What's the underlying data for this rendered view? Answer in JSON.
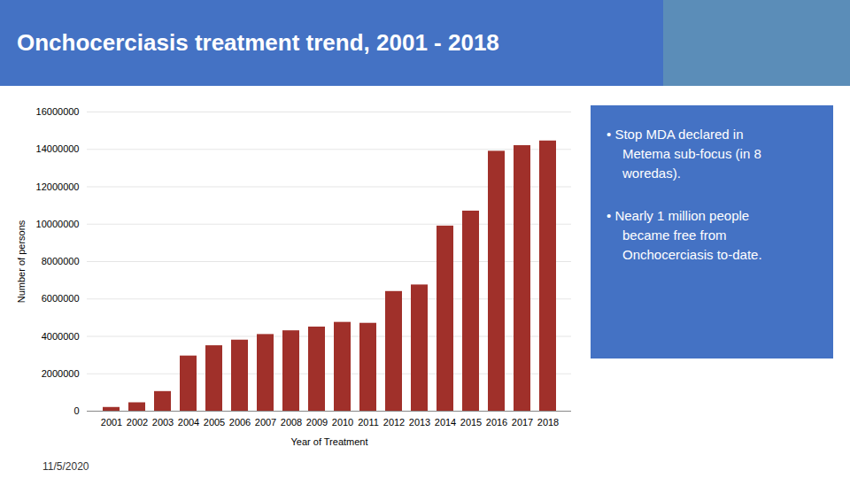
{
  "chart_data": {
    "type": "bar",
    "title": "Onchocerciasis treatment trend, 2001 - 2018",
    "xlabel": "Year of Treatment",
    "ylabel": "Number of persons",
    "categories": [
      "2001",
      "2002",
      "2003",
      "2004",
      "2005",
      "2006",
      "2007",
      "2008",
      "2009",
      "2010",
      "2011",
      "2012",
      "2013",
      "2014",
      "2015",
      "2016",
      "2017",
      "2018"
    ],
    "values": [
      200000,
      450000,
      1050000,
      2950000,
      3500000,
      3800000,
      4100000,
      4300000,
      4500000,
      4750000,
      4700000,
      6400000,
      6750000,
      9900000,
      10700000,
      13900000,
      14200000,
      14450000
    ],
    "color": "#A0302A",
    "ylim": [
      0,
      16000000
    ],
    "yticks": [
      0,
      2000000,
      4000000,
      6000000,
      8000000,
      10000000,
      12000000,
      14000000,
      16000000
    ],
    "grid": true,
    "annotations": [
      [
        "• Stop MDA declared in",
        "Metema sub-focus (in 8",
        "woredas)."
      ],
      [
        "• Nearly 1 million people",
        "became free from",
        "Onchocerciasis to-date."
      ]
    ],
    "caption": "11/5/2020"
  }
}
